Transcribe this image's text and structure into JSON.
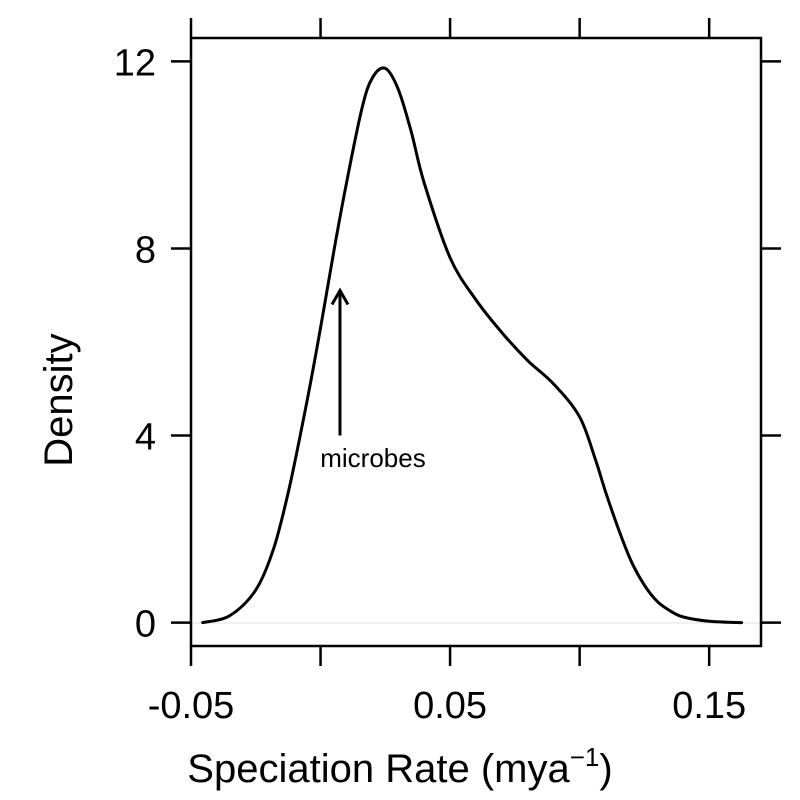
{
  "chart_data": {
    "type": "line",
    "xlabel": "Speciation Rate (mya",
    "xlabel_superscript": "−1",
    "xlabel_suffix": ")",
    "ylabel": "Density",
    "xlim": [
      -0.05,
      0.17
    ],
    "ylim": [
      -0.5,
      12.5
    ],
    "x_ticks": [
      -0.05,
      0.0,
      0.05,
      0.1,
      0.15
    ],
    "x_tick_labels": [
      "-0.05",
      "",
      "0.05",
      "",
      "0.15"
    ],
    "y_ticks": [
      0,
      4,
      8,
      12
    ],
    "y_tick_labels": [
      "0",
      "4",
      "8",
      "12"
    ],
    "grid": false,
    "series": [
      {
        "color": "#000000",
        "x": [
          -0.0455,
          -0.035,
          -0.025,
          -0.018,
          -0.012,
          -0.005,
          0.0,
          0.005,
          0.01,
          0.016,
          0.02,
          0.025,
          0.03,
          0.035,
          0.04,
          0.05,
          0.06,
          0.07,
          0.08,
          0.09,
          0.1,
          0.106,
          0.11,
          0.115,
          0.12,
          0.125,
          0.13,
          0.135,
          0.14,
          0.15,
          0.1625
        ],
        "y": [
          0.0,
          0.15,
          0.7,
          1.6,
          2.9,
          4.8,
          6.3,
          7.9,
          9.4,
          11.0,
          11.65,
          11.85,
          11.4,
          10.5,
          9.4,
          7.8,
          6.9,
          6.2,
          5.6,
          5.1,
          4.4,
          3.5,
          2.8,
          2.0,
          1.3,
          0.8,
          0.45,
          0.25,
          0.12,
          0.03,
          0.0
        ]
      }
    ],
    "annotations": [
      {
        "text": "microbes",
        "arrow_x": 0.0075,
        "arrow_from_y": 4.0,
        "arrow_to_y": 7.1,
        "label_y": 3.5
      }
    ]
  }
}
